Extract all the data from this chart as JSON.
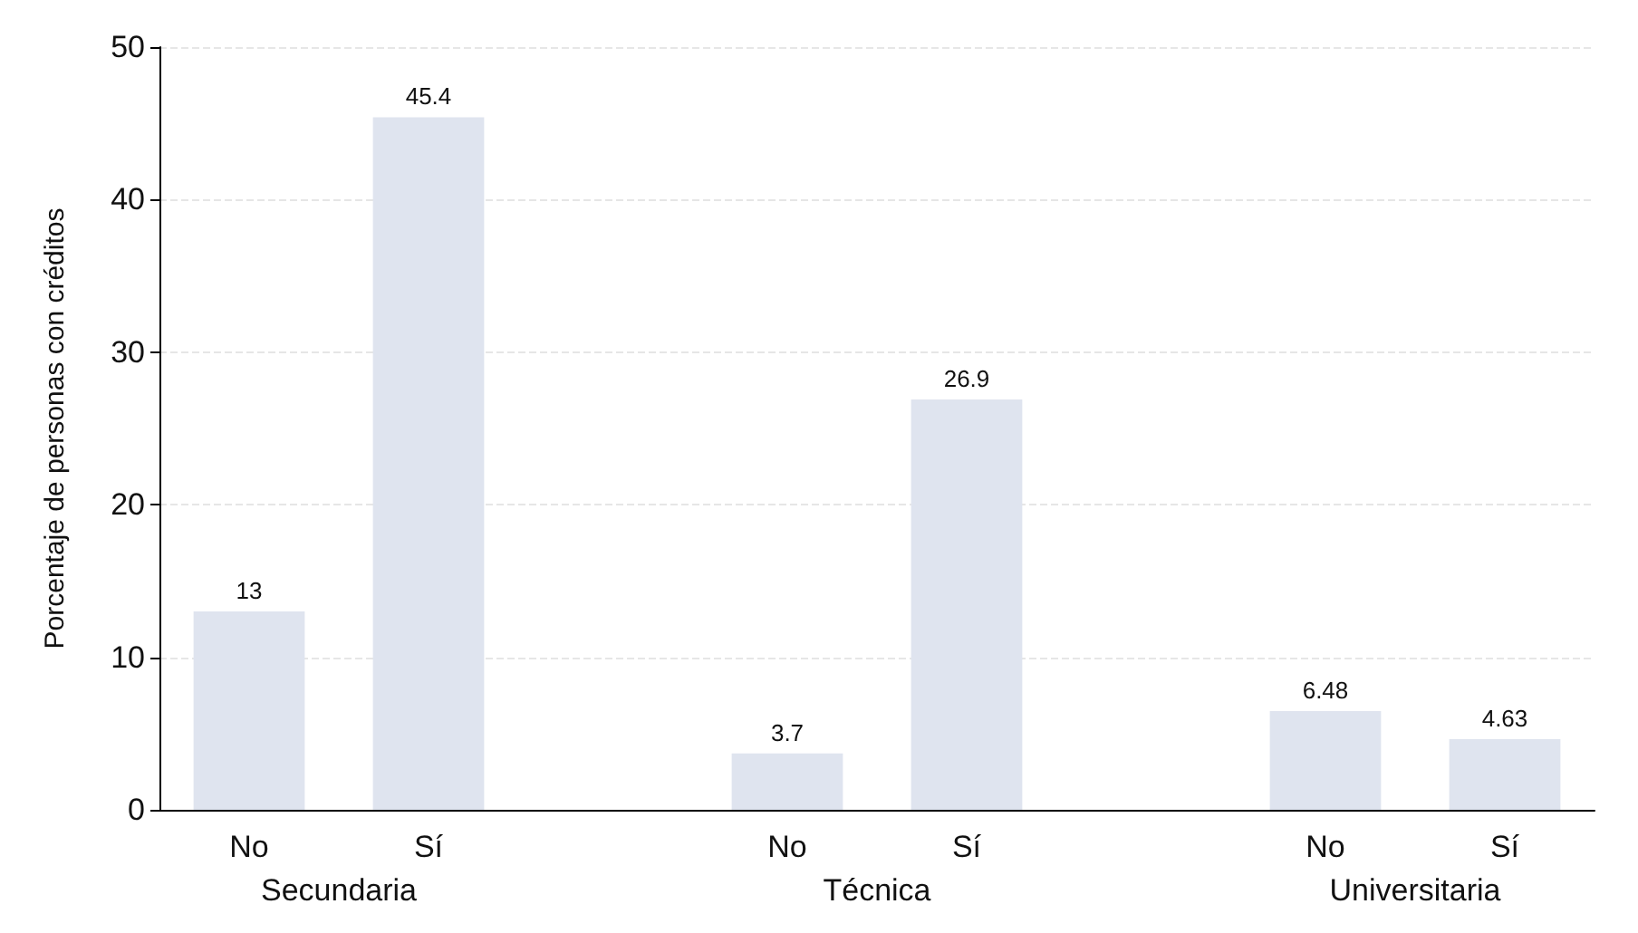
{
  "chart_data": {
    "type": "bar",
    "ylabel": "Porcentaje de personas con créditos",
    "categories": [
      "No",
      "Sí",
      null,
      "No",
      "Sí",
      null,
      "No",
      "Sí"
    ],
    "values": [
      13,
      45.4,
      null,
      3.7,
      26.9,
      null,
      6.48,
      4.63
    ],
    "color": "#dfe4ef",
    "ylim": [
      0,
      50
    ],
    "yticks": [
      0,
      10,
      20,
      30,
      40,
      50
    ],
    "grid": "y",
    "data_labels": true,
    "annotations": [
      "Secundaria",
      "Técnica",
      "Universitaria"
    ]
  }
}
